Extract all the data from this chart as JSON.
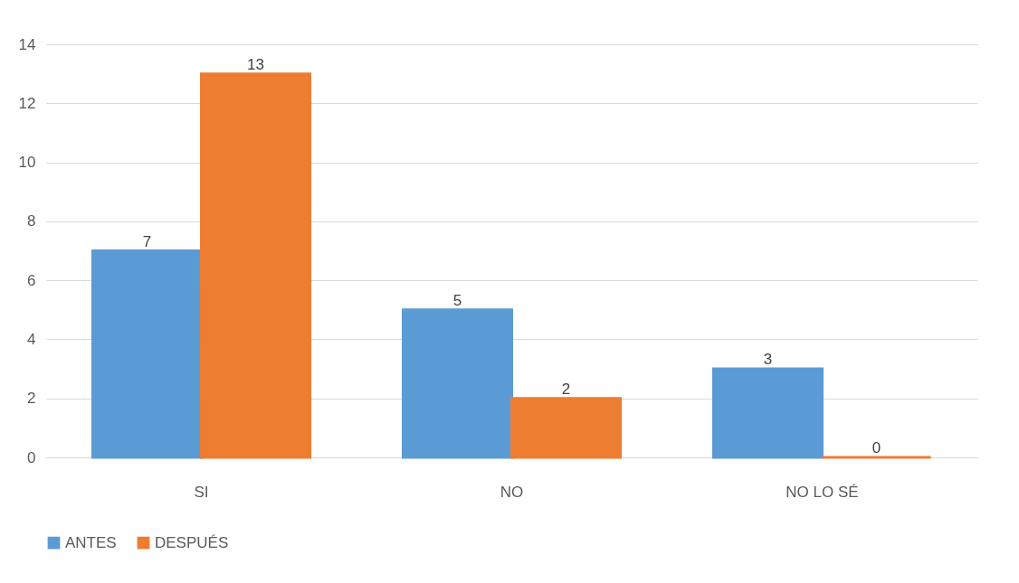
{
  "chart_data": {
    "type": "bar",
    "categories": [
      "SI",
      "NO",
      "NO LO SÉ"
    ],
    "series": [
      {
        "name": "ANTES",
        "color": "#5b9bd5",
        "values": [
          7,
          5,
          3
        ]
      },
      {
        "name": "DESPUÉS",
        "color": "#ed7d31",
        "values": [
          13,
          2,
          0
        ]
      }
    ],
    "ylim": [
      0,
      14
    ],
    "yticks": [
      0,
      2,
      4,
      6,
      8,
      10,
      12,
      14
    ],
    "grid": true,
    "legend": "bottom",
    "data_labels": true
  }
}
